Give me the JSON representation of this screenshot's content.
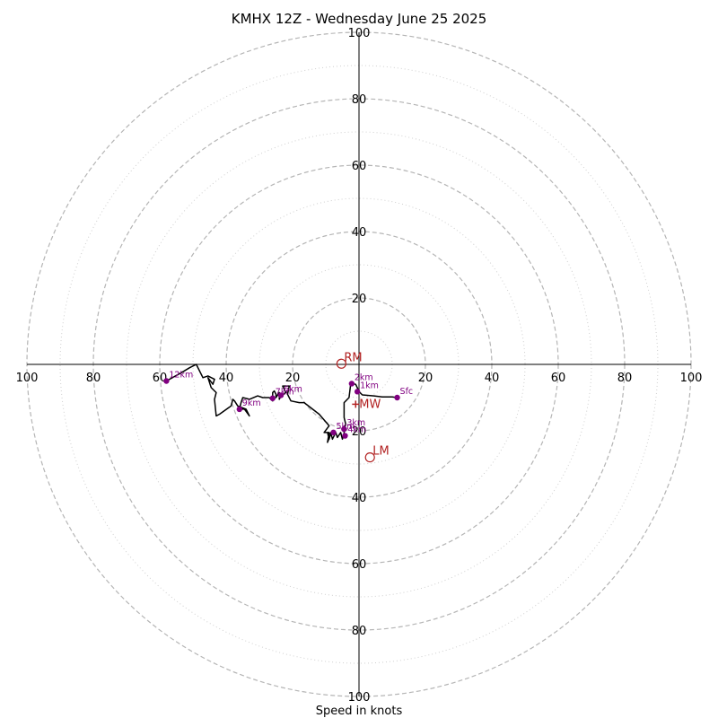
{
  "chart_data": {
    "type": "hodograph",
    "title": "KMHX 12Z - Wednesday June 25 2025",
    "xlabel": "Speed in knots",
    "ring_major_values": [
      20,
      40,
      60,
      80,
      100
    ],
    "ring_minor_values": [
      10,
      30,
      50,
      70,
      90
    ],
    "max_speed": 100,
    "x_tick_labels": [
      "100",
      "80",
      "60",
      "40",
      "20",
      "20",
      "40",
      "60",
      "80",
      "100"
    ],
    "x_tick_values": [
      -100,
      -80,
      -60,
      -40,
      -20,
      20,
      40,
      60,
      80,
      100
    ],
    "y_tick_labels": [
      "100",
      "80",
      "60",
      "40",
      "20",
      "20",
      "40",
      "60",
      "80",
      "100"
    ],
    "y_tick_values": [
      100,
      80,
      60,
      40,
      20,
      -20,
      -40,
      -60,
      -80,
      -100
    ],
    "trace_uv": [
      [
        11.5,
        -10
      ],
      [
        10,
        -9.8
      ],
      [
        7,
        -9.8
      ],
      [
        4.5,
        -9.5
      ],
      [
        1,
        -9.2
      ],
      [
        0,
        -8.2
      ],
      [
        -0.5,
        -7
      ],
      [
        -1,
        -6
      ],
      [
        -2,
        -5.8
      ],
      [
        -2.5,
        -5.8
      ],
      [
        -3,
        -10
      ],
      [
        -4.5,
        -11.5
      ],
      [
        -4.5,
        -16
      ],
      [
        -4,
        -18
      ],
      [
        -4.5,
        -19.5
      ],
      [
        -4.5,
        -21
      ],
      [
        -5,
        -22.5
      ],
      [
        -5.5,
        -20.5
      ],
      [
        -6.5,
        -22
      ],
      [
        -7,
        -20.5
      ],
      [
        -8,
        -22.5
      ],
      [
        -8.5,
        -20.5
      ],
      [
        -9,
        -22.5
      ],
      [
        -9.5,
        -20.5
      ],
      [
        -8.5,
        -21
      ],
      [
        -9.5,
        -23.5
      ],
      [
        -9,
        -20.5
      ],
      [
        -10.5,
        -20.5
      ],
      [
        -9,
        -18.5
      ],
      [
        -12,
        -15
      ],
      [
        -16.5,
        -11.5
      ],
      [
        -18,
        -11.5
      ],
      [
        -20.5,
        -11
      ],
      [
        -21.5,
        -9
      ],
      [
        -21,
        -6.5
      ],
      [
        -23,
        -6.5
      ],
      [
        -22,
        -8.5
      ],
      [
        -23.5,
        -9.5
      ],
      [
        -24,
        -10.5
      ],
      [
        -24,
        -8.5
      ],
      [
        -25,
        -10
      ],
      [
        -25,
        -9
      ],
      [
        -25.5,
        -8
      ],
      [
        -26,
        -8.5
      ],
      [
        -26,
        -11
      ],
      [
        -26.5,
        -10.5
      ],
      [
        -27,
        -10
      ],
      [
        -29,
        -10
      ],
      [
        -30.5,
        -9.5
      ],
      [
        -33,
        -10.5
      ],
      [
        -35,
        -10
      ],
      [
        -35.5,
        -11.5
      ],
      [
        -36,
        -13.5
      ],
      [
        -34.5,
        -13.5
      ],
      [
        -33,
        -15.5
      ],
      [
        -34,
        -13.5
      ],
      [
        -36.5,
        -12.5
      ],
      [
        -37.5,
        -11
      ],
      [
        -38,
        -10.5
      ],
      [
        -38.5,
        -12.5
      ],
      [
        -42,
        -15
      ],
      [
        -43,
        -15.5
      ],
      [
        -43.5,
        -10.5
      ],
      [
        -43,
        -8.5
      ],
      [
        -44.5,
        -7
      ],
      [
        -45.5,
        -4
      ],
      [
        -44,
        -6
      ],
      [
        -43.5,
        -4.5
      ],
      [
        -45.5,
        -3.5
      ],
      [
        -47,
        -4
      ],
      [
        -49,
        0
      ],
      [
        -51,
        -1
      ],
      [
        -53.5,
        -2.5
      ],
      [
        -58,
        -5
      ]
    ],
    "height_points": [
      {
        "label": "Sfc",
        "u": 11.5,
        "v": -10
      },
      {
        "label": "1km",
        "u": -0.5,
        "v": -8.2
      },
      {
        "label": "2km",
        "u": -2.2,
        "v": -5.8
      },
      {
        "label": "3km",
        "u": -4.5,
        "v": -19.5
      },
      {
        "label": "4km",
        "u": -4.2,
        "v": -21.5
      },
      {
        "label": "5km",
        "u": -7.7,
        "v": -20.5
      },
      {
        "label": "6km",
        "u": -23.5,
        "v": -9.3
      },
      {
        "label": "7km",
        "u": -26,
        "v": -10.2
      },
      {
        "label": "9km",
        "u": -36,
        "v": -13.5
      },
      {
        "label": "12km",
        "u": -58,
        "v": -5
      }
    ],
    "motions": [
      {
        "label": "RM",
        "u": -5.3,
        "v": 0.2
      },
      {
        "label": "LM",
        "u": 3.3,
        "v": -28
      },
      {
        "label": "MW",
        "u": -1,
        "v": -12
      }
    ],
    "colors": {
      "axis": "#000000",
      "ring": "#b5b5b5",
      "minor_ring": "#cfcfcf",
      "trace": "#000000",
      "height_marker": "#800080",
      "motion": "#b22222"
    }
  }
}
